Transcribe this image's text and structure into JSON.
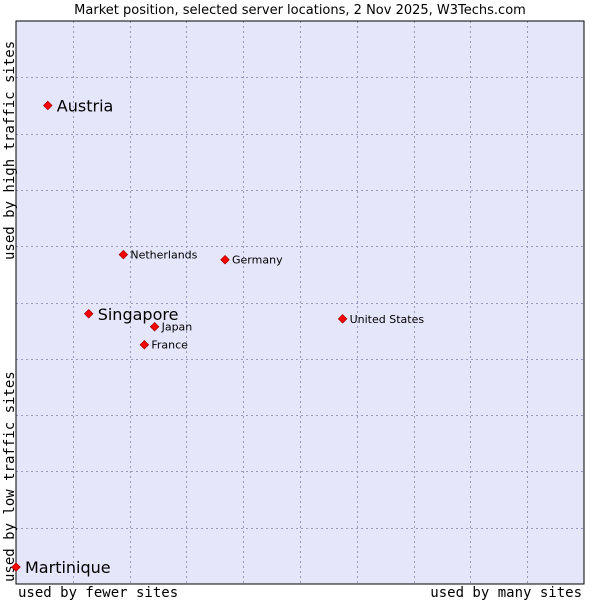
{
  "chart_data": {
    "type": "scatter",
    "title": "Market position, selected server locations, 2 Nov 2025, W3Techs.com",
    "xlabel_left": "used by fewer sites",
    "xlabel_right": "used by many sites",
    "ylabel_top": "used by high traffic sites",
    "ylabel_bottom": "used by low traffic sites",
    "xlim": [
      0,
      10
    ],
    "ylim": [
      0,
      10
    ],
    "x_gridlines": [
      1,
      2,
      3,
      4,
      5,
      6,
      7,
      8,
      9
    ],
    "y_gridlines": [
      1,
      2,
      3,
      4,
      5,
      6,
      7,
      8,
      9
    ],
    "grid": true,
    "points": [
      {
        "label": "Austria",
        "x": 0.56,
        "y": 8.5,
        "emphasis": "large",
        "label_side": "right"
      },
      {
        "label": "Netherlands",
        "x": 1.89,
        "y": 5.85,
        "emphasis": "small",
        "label_side": "right"
      },
      {
        "label": "Germany",
        "x": 3.68,
        "y": 5.76,
        "emphasis": "small",
        "label_side": "right"
      },
      {
        "label": "Singapore",
        "x": 1.28,
        "y": 4.8,
        "emphasis": "large",
        "label_side": "right"
      },
      {
        "label": "Japan",
        "x": 2.44,
        "y": 4.57,
        "emphasis": "small",
        "label_side": "right"
      },
      {
        "label": "France",
        "x": 2.26,
        "y": 4.25,
        "emphasis": "small",
        "label_side": "right"
      },
      {
        "label": "United States",
        "x": 5.75,
        "y": 4.71,
        "emphasis": "small",
        "label_side": "right"
      },
      {
        "label": "Martinique",
        "x": 0.0,
        "y": 0.3,
        "emphasis": "large",
        "label_side": "right"
      }
    ]
  },
  "colors": {
    "plot_background": "#e6e6fa",
    "grid": "#9999bb",
    "axis": "#000000",
    "point_fill": "#ff0000",
    "point_stroke": "#aa0000"
  }
}
